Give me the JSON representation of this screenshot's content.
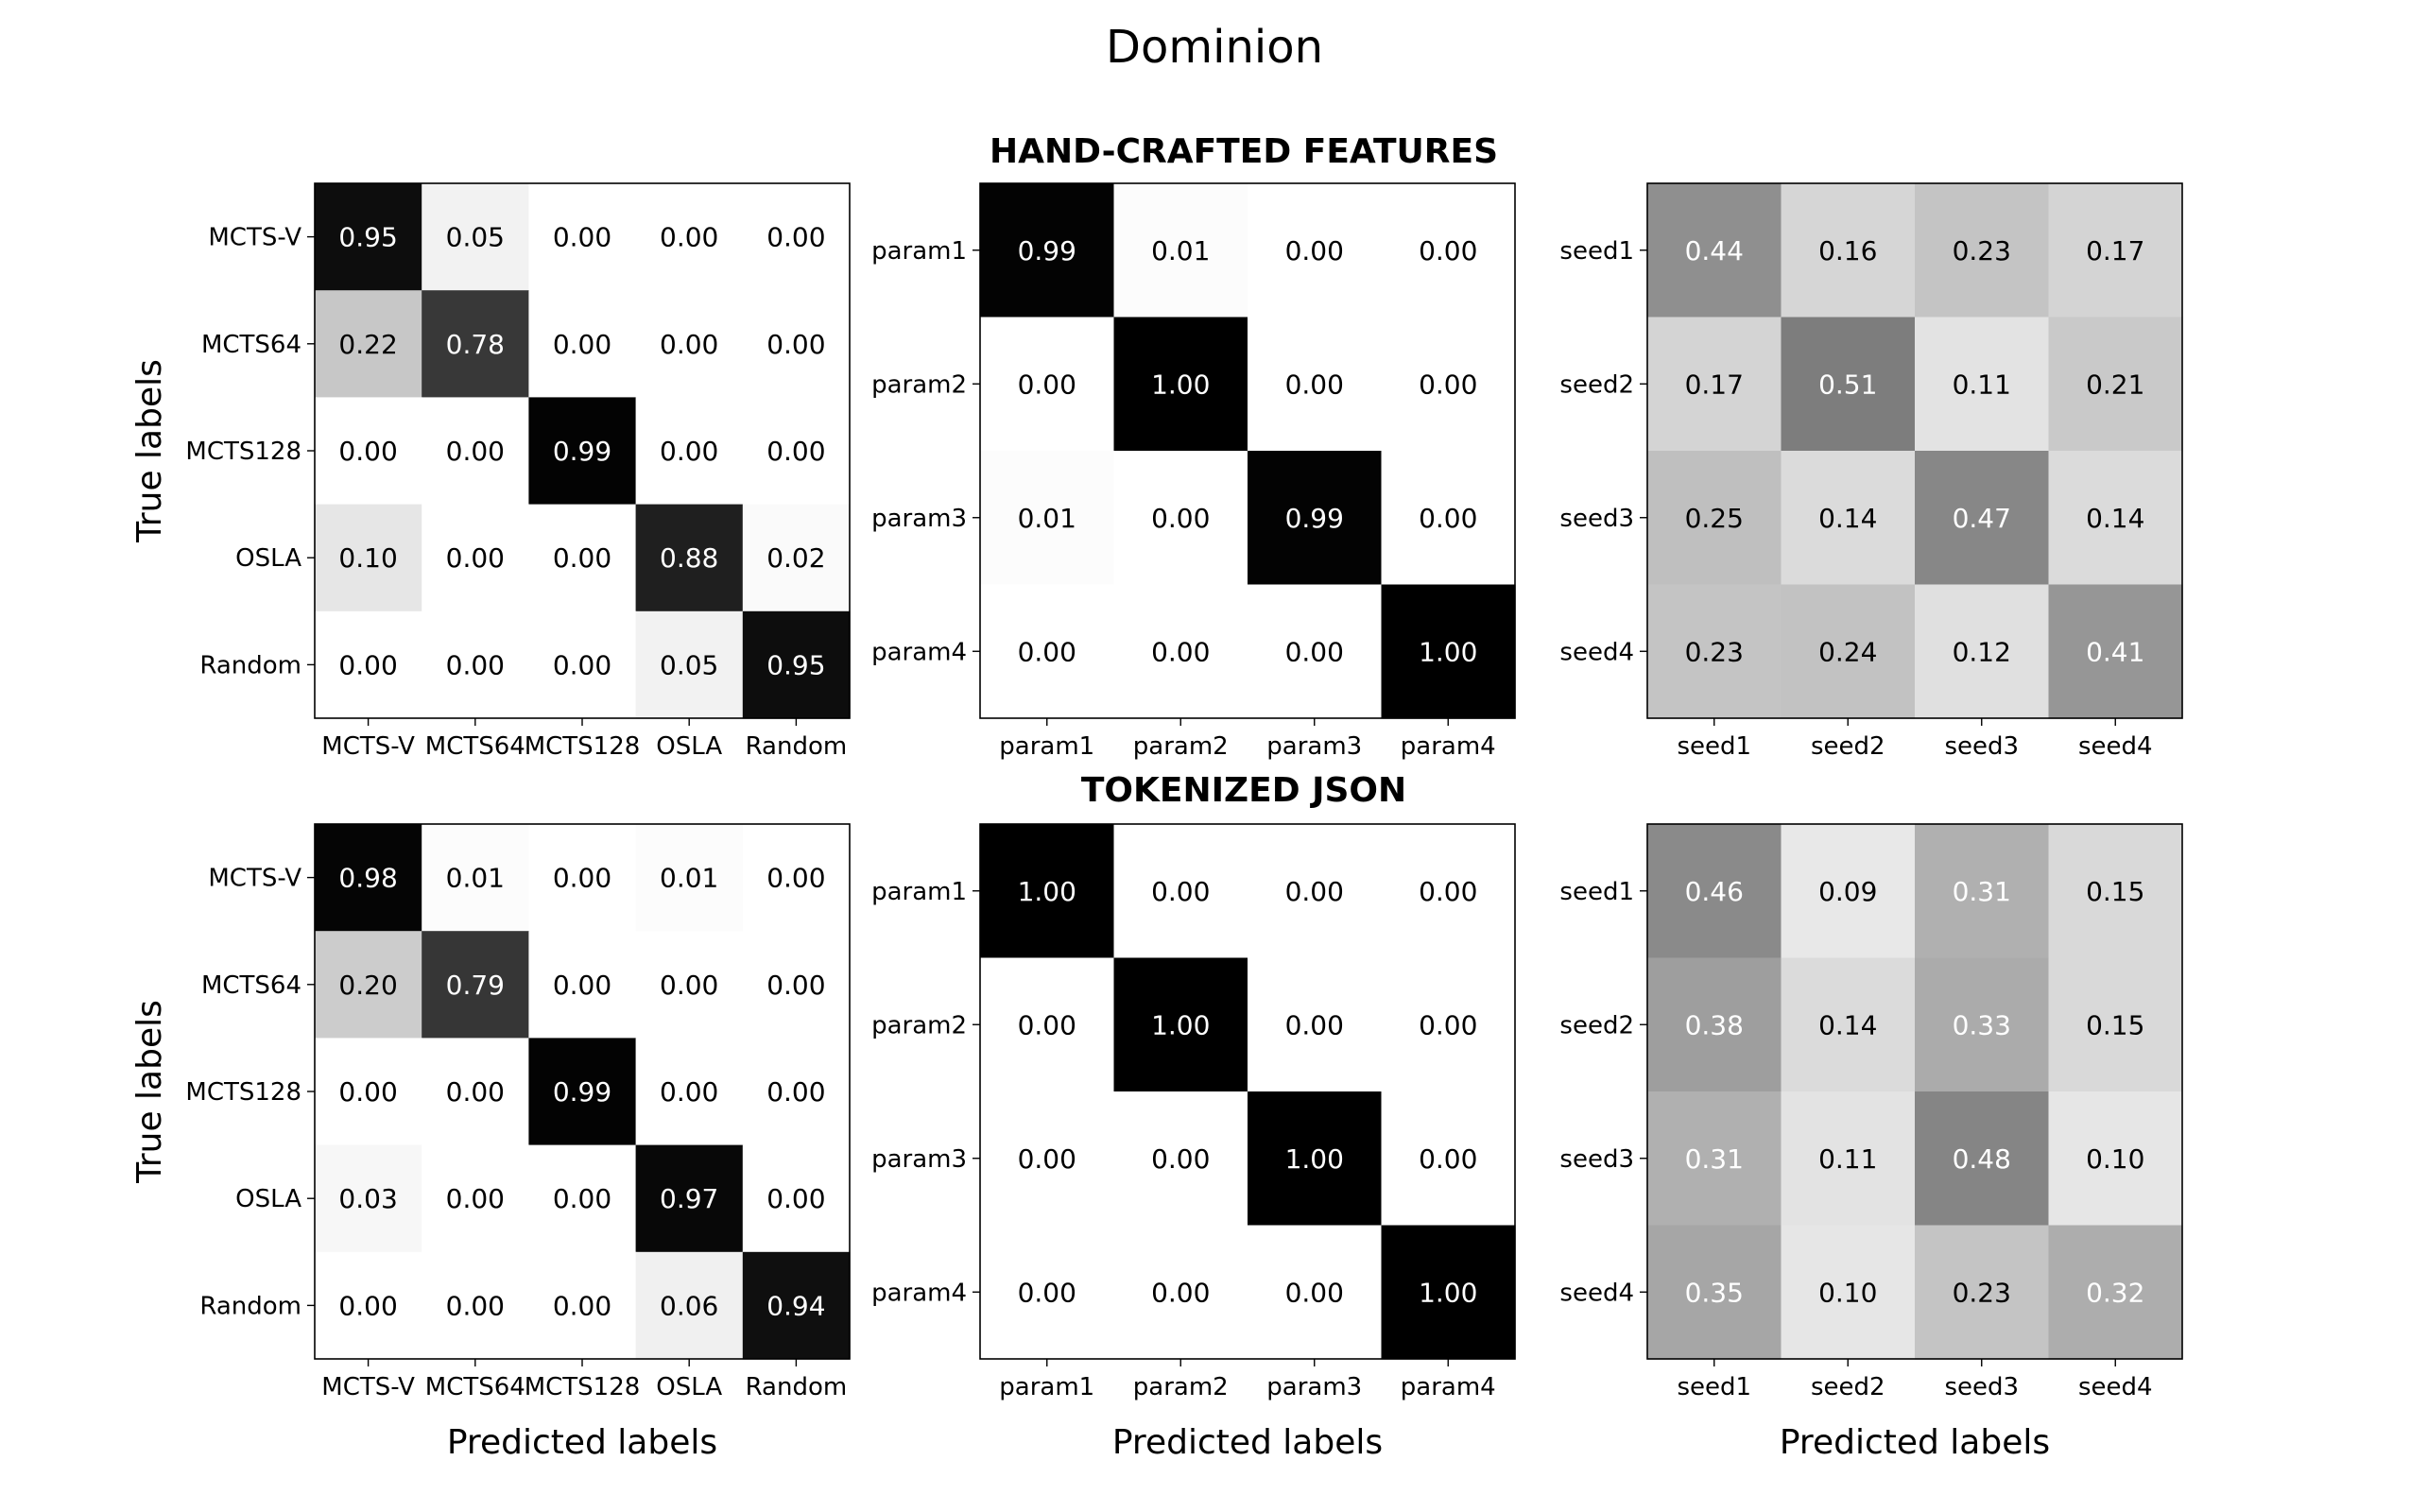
{
  "figure": {
    "title": "Dominion",
    "row_titles": [
      "HAND-CRAFTED FEATURES",
      "TOKENIZED JSON"
    ],
    "ylabel": "True labels",
    "xlabel": "Predicted labels"
  },
  "chart_data": [
    {
      "type": "heatmap",
      "row": 0,
      "col": 0,
      "section": "HAND-CRAFTED FEATURES",
      "x_tick_labels": [
        "MCTS-V",
        "MCTS64",
        "MCTS128",
        "OSLA",
        "Random"
      ],
      "y_tick_labels": [
        "MCTS-V",
        "MCTS64",
        "MCTS128",
        "OSLA",
        "Random"
      ],
      "xlabel": "",
      "ylabel": "True labels",
      "colormap": "Greys",
      "values": [
        [
          0.95,
          0.05,
          0.0,
          0.0,
          0.0
        ],
        [
          0.22,
          0.78,
          0.0,
          0.0,
          0.0
        ],
        [
          0.0,
          0.0,
          0.99,
          0.0,
          0.0
        ],
        [
          0.1,
          0.0,
          0.0,
          0.88,
          0.02
        ],
        [
          0.0,
          0.0,
          0.0,
          0.05,
          0.95
        ]
      ]
    },
    {
      "type": "heatmap",
      "row": 0,
      "col": 1,
      "section": "HAND-CRAFTED FEATURES",
      "x_tick_labels": [
        "param1",
        "param2",
        "param3",
        "param4"
      ],
      "y_tick_labels": [
        "param1",
        "param2",
        "param3",
        "param4"
      ],
      "xlabel": "",
      "ylabel": "",
      "colormap": "Greys",
      "values": [
        [
          0.99,
          0.01,
          0.0,
          0.0
        ],
        [
          0.0,
          1.0,
          0.0,
          0.0
        ],
        [
          0.01,
          0.0,
          0.99,
          0.0
        ],
        [
          0.0,
          0.0,
          0.0,
          1.0
        ]
      ]
    },
    {
      "type": "heatmap",
      "row": 0,
      "col": 2,
      "section": "HAND-CRAFTED FEATURES",
      "x_tick_labels": [
        "seed1",
        "seed2",
        "seed3",
        "seed4"
      ],
      "y_tick_labels": [
        "seed1",
        "seed2",
        "seed3",
        "seed4"
      ],
      "xlabel": "",
      "ylabel": "",
      "colormap": "Greys",
      "values": [
        [
          0.44,
          0.16,
          0.23,
          0.17
        ],
        [
          0.17,
          0.51,
          0.11,
          0.21
        ],
        [
          0.25,
          0.14,
          0.47,
          0.14
        ],
        [
          0.23,
          0.24,
          0.12,
          0.41
        ]
      ]
    },
    {
      "type": "heatmap",
      "row": 1,
      "col": 0,
      "section": "TOKENIZED JSON",
      "x_tick_labels": [
        "MCTS-V",
        "MCTS64",
        "MCTS128",
        "OSLA",
        "Random"
      ],
      "y_tick_labels": [
        "MCTS-V",
        "MCTS64",
        "MCTS128",
        "OSLA",
        "Random"
      ],
      "xlabel": "Predicted labels",
      "ylabel": "True labels",
      "colormap": "Greys",
      "values": [
        [
          0.98,
          0.01,
          0.0,
          0.01,
          0.0
        ],
        [
          0.2,
          0.79,
          0.0,
          0.0,
          0.0
        ],
        [
          0.0,
          0.0,
          0.99,
          0.0,
          0.0
        ],
        [
          0.03,
          0.0,
          0.0,
          0.97,
          0.0
        ],
        [
          0.0,
          0.0,
          0.0,
          0.06,
          0.94
        ]
      ]
    },
    {
      "type": "heatmap",
      "row": 1,
      "col": 1,
      "section": "TOKENIZED JSON",
      "x_tick_labels": [
        "param1",
        "param2",
        "param3",
        "param4"
      ],
      "y_tick_labels": [
        "param1",
        "param2",
        "param3",
        "param4"
      ],
      "xlabel": "Predicted labels",
      "ylabel": "",
      "colormap": "Greys",
      "values": [
        [
          1.0,
          0.0,
          0.0,
          0.0
        ],
        [
          0.0,
          1.0,
          0.0,
          0.0
        ],
        [
          0.0,
          0.0,
          1.0,
          0.0
        ],
        [
          0.0,
          0.0,
          0.0,
          1.0
        ]
      ]
    },
    {
      "type": "heatmap",
      "row": 1,
      "col": 2,
      "section": "TOKENIZED JSON",
      "x_tick_labels": [
        "seed1",
        "seed2",
        "seed3",
        "seed4"
      ],
      "y_tick_labels": [
        "seed1",
        "seed2",
        "seed3",
        "seed4"
      ],
      "xlabel": "Predicted labels",
      "ylabel": "",
      "colormap": "Greys",
      "values": [
        [
          0.46,
          0.09,
          0.31,
          0.15
        ],
        [
          0.38,
          0.14,
          0.33,
          0.15
        ],
        [
          0.31,
          0.11,
          0.48,
          0.1
        ],
        [
          0.35,
          0.1,
          0.23,
          0.32
        ]
      ]
    }
  ]
}
